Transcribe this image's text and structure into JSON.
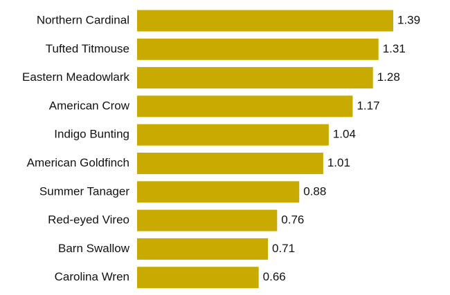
{
  "chart_data": {
    "type": "bar",
    "orientation": "horizontal",
    "categories": [
      "Northern Cardinal",
      "Tufted Titmouse",
      "Eastern Meadowlark",
      "American Crow",
      "Indigo Bunting",
      "American Goldfinch",
      "Summer Tanager",
      "Red-eyed Vireo",
      "Barn Swallow",
      "Carolina Wren"
    ],
    "values": [
      1.39,
      1.31,
      1.28,
      1.17,
      1.04,
      1.01,
      0.88,
      0.76,
      0.71,
      0.66
    ],
    "color": "#c9aa00"
  }
}
